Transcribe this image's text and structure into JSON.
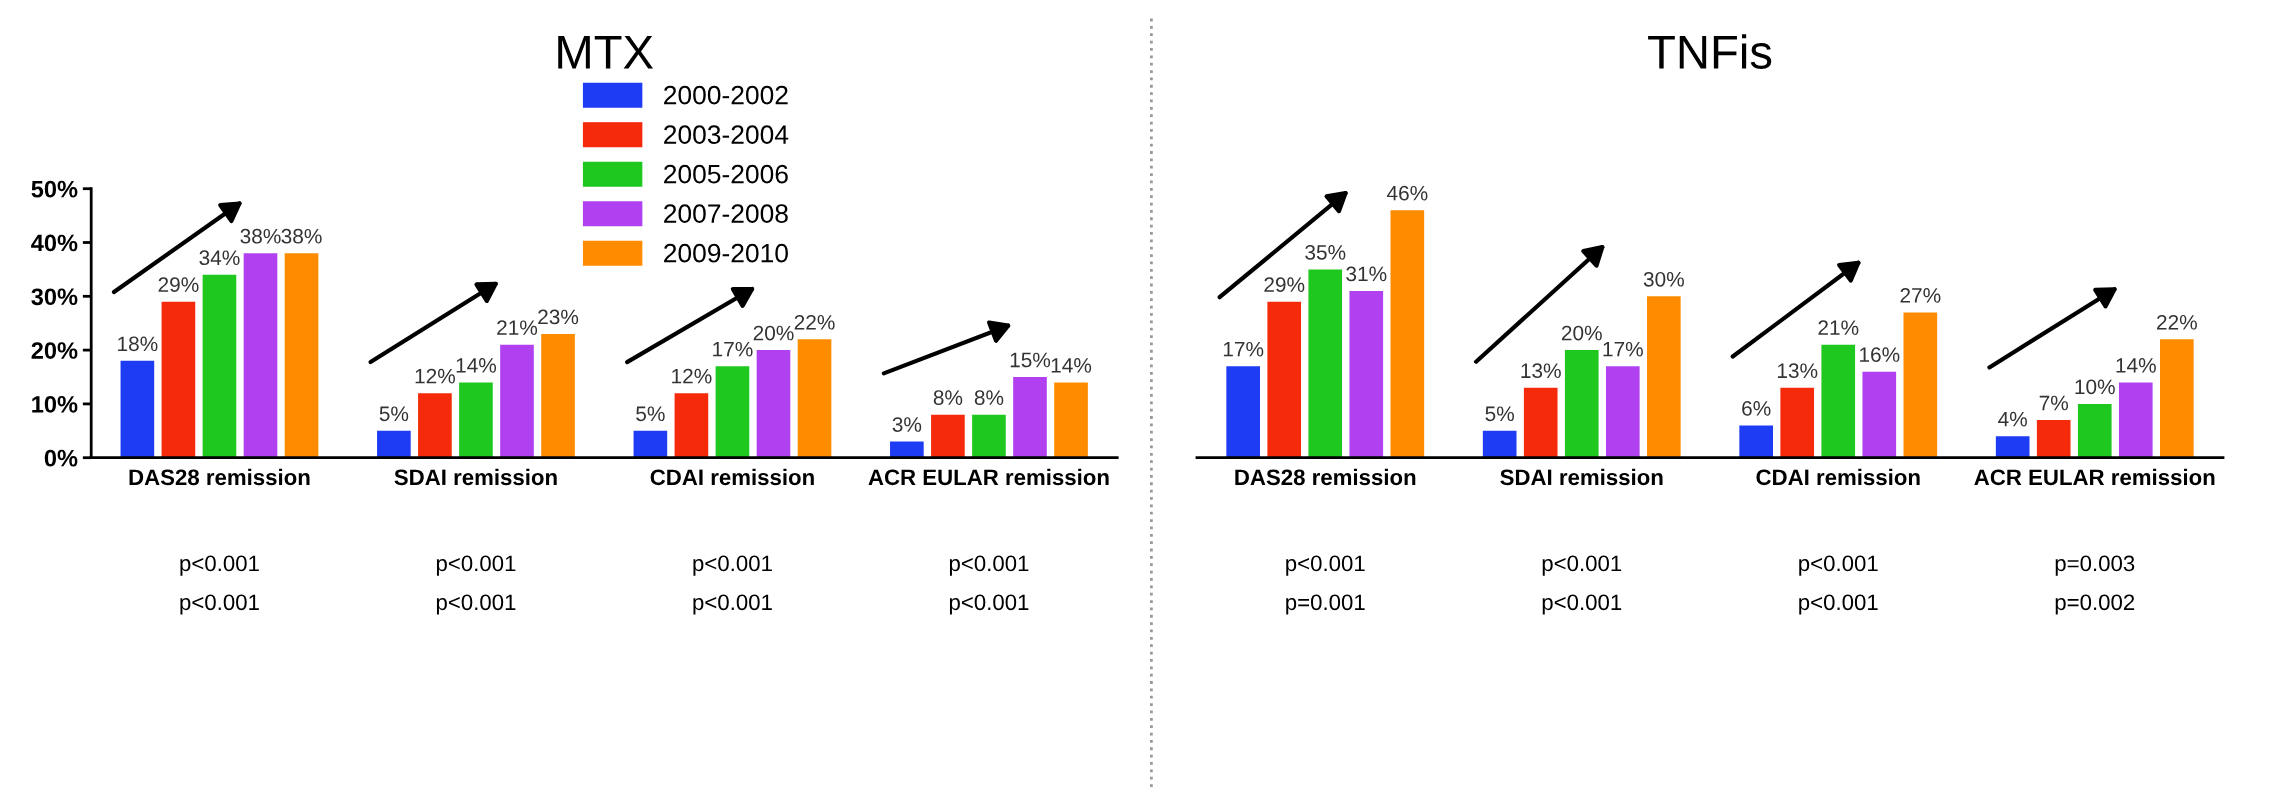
{
  "chart_data": [
    {
      "type": "bar",
      "title": "MTX",
      "categories": [
        "DAS28 remission",
        "SDAI remission",
        "CDAI remission",
        "ACR EULAR remission"
      ],
      "series": [
        {
          "name": "2000-2002",
          "color": "#1f3cf5",
          "values": [
            18,
            5,
            5,
            3
          ],
          "value_labels": [
            "18%",
            "5%",
            "5%",
            "3%"
          ]
        },
        {
          "name": "2003-2004",
          "color": "#f52a0a",
          "values": [
            29,
            12,
            12,
            8
          ],
          "value_labels": [
            "29%",
            "12%",
            "12%",
            "8%"
          ]
        },
        {
          "name": "2005-2006",
          "color": "#1ec81e",
          "values": [
            34,
            14,
            17,
            8
          ],
          "value_labels": [
            "34%",
            "14%",
            "17%",
            "8%"
          ]
        },
        {
          "name": "2007-2008",
          "color": "#b040f0",
          "values": [
            38,
            21,
            20,
            15
          ],
          "value_labels": [
            "38%",
            "21%",
            "20%",
            "15%"
          ]
        },
        {
          "name": "2009-2010",
          "color": "#ff8c00",
          "values": [
            38,
            23,
            22,
            14
          ],
          "value_labels": [
            "38%",
            "23%",
            "22%",
            "14%"
          ]
        }
      ],
      "ylim": [
        0,
        50
      ],
      "yticks": [
        {
          "value": 0,
          "label": "0%"
        },
        {
          "value": 10,
          "label": "10%"
        },
        {
          "value": 20,
          "label": "20%"
        },
        {
          "value": 30,
          "label": "30%"
        },
        {
          "value": 40,
          "label": "40%"
        },
        {
          "value": 50,
          "label": "50%"
        }
      ],
      "grid": false,
      "legend": "top right",
      "annotations": [
        "p<0.001",
        "p<0.001",
        "p<0.001",
        "p<0.001",
        "p<0.001",
        "p<0.001",
        "p<0.001",
        "p<0.001"
      ]
    },
    {
      "type": "bar",
      "title": "TNFis",
      "categories": [
        "DAS28 remission",
        "SDAI remission",
        "CDAI remission",
        "ACR EULAR remission"
      ],
      "series": [
        {
          "color": "#1f3cf5",
          "values": [
            17,
            5,
            6,
            4
          ],
          "value_labels": [
            "17%",
            "5%",
            "6%",
            "4%"
          ]
        },
        {
          "color": "#f52a0a",
          "values": [
            29,
            13,
            13,
            7
          ],
          "value_labels": [
            "29%",
            "13%",
            "13%",
            "7%"
          ]
        },
        {
          "color": "#1ec81e",
          "values": [
            35,
            20,
            21,
            10
          ],
          "value_labels": [
            "35%",
            "20%",
            "21%",
            "10%"
          ]
        },
        {
          "color": "#b040f0",
          "values": [
            31,
            17,
            16,
            14
          ],
          "value_labels": [
            "31%",
            "17%",
            "16%",
            "14%"
          ]
        },
        {
          "color": "#ff8c00",
          "values": [
            46,
            30,
            27,
            22
          ],
          "value_labels": [
            "46%",
            "30%",
            "27%",
            "22%"
          ]
        }
      ],
      "ylim": [
        0,
        50
      ],
      "tick_labels": "x",
      "grid": false,
      "annotations": [
        "p<0.001",
        "p=0.001",
        "p<0.001",
        "p<0.001",
        "p<0.001",
        "p<0.001",
        "p=0.003",
        "p=0.002"
      ]
    }
  ]
}
